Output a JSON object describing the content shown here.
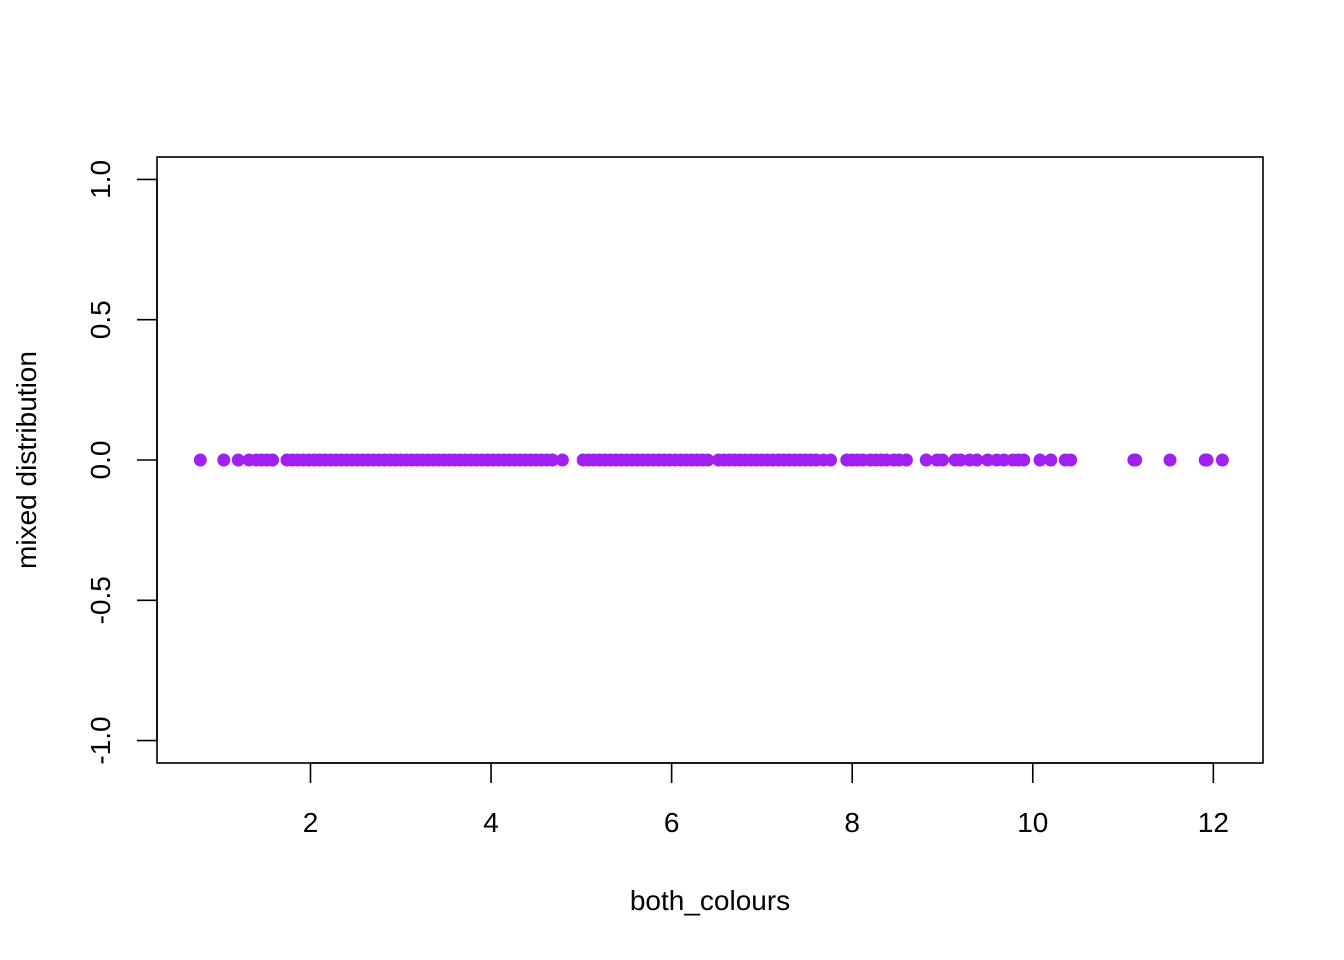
{
  "chart_data": {
    "type": "scatter",
    "title": "",
    "xlabel": "both_colours",
    "ylabel": "mixed distribution",
    "xlim": [
      0.3,
      12.55
    ],
    "ylim": [
      -1.08,
      1.08
    ],
    "x_ticks": [
      2,
      4,
      6,
      8,
      10,
      12
    ],
    "x_tick_labels": [
      "2",
      "4",
      "6",
      "8",
      "10",
      "12"
    ],
    "y_ticks": [
      -1.0,
      -0.5,
      0.0,
      0.5,
      1.0
    ],
    "y_tick_labels": [
      "-1.0",
      "-0.5",
      "0.0",
      "0.5",
      "1.0"
    ],
    "grid": false,
    "point_color": "#a020f0",
    "points_y": 0.0,
    "points_x": [
      0.78,
      1.04,
      1.2,
      1.32,
      1.4,
      1.46,
      1.52,
      1.58,
      1.74,
      1.8,
      1.86,
      1.92,
      1.98,
      2.04,
      2.1,
      2.16,
      2.22,
      2.28,
      2.34,
      2.4,
      2.46,
      2.52,
      2.58,
      2.64,
      2.7,
      2.76,
      2.82,
      2.88,
      2.94,
      3.0,
      3.06,
      3.12,
      3.18,
      3.24,
      3.3,
      3.36,
      3.42,
      3.48,
      3.54,
      3.6,
      3.66,
      3.72,
      3.78,
      3.84,
      3.9,
      3.96,
      4.02,
      4.08,
      4.14,
      4.2,
      4.26,
      4.32,
      4.38,
      4.44,
      4.5,
      4.56,
      4.62,
      4.68,
      4.79,
      5.02,
      5.08,
      5.14,
      5.2,
      5.26,
      5.32,
      5.38,
      5.44,
      5.5,
      5.56,
      5.62,
      5.68,
      5.74,
      5.8,
      5.86,
      5.92,
      5.98,
      6.04,
      6.1,
      6.16,
      6.22,
      6.28,
      6.34,
      6.4,
      6.52,
      6.58,
      6.64,
      6.7,
      6.76,
      6.82,
      6.88,
      6.94,
      7.0,
      7.06,
      7.12,
      7.18,
      7.24,
      7.3,
      7.36,
      7.42,
      7.48,
      7.54,
      7.6,
      7.68,
      7.76,
      7.94,
      8.0,
      8.06,
      8.12,
      8.2,
      8.26,
      8.32,
      8.38,
      8.46,
      8.52,
      8.6,
      8.82,
      8.94,
      9.0,
      9.14,
      9.2,
      9.3,
      9.38,
      9.5,
      9.6,
      9.68,
      9.78,
      9.84,
      9.9,
      10.08,
      10.2,
      10.36,
      10.42,
      11.12,
      11.14,
      11.52,
      11.91,
      11.93,
      12.1
    ]
  }
}
